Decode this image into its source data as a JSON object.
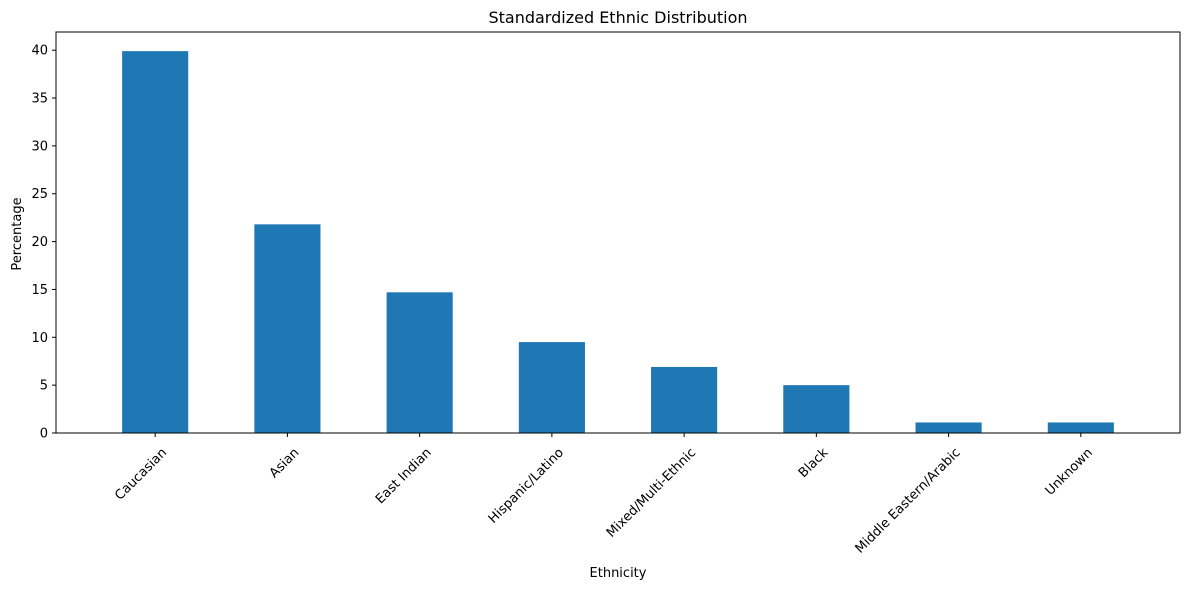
{
  "chart_data": {
    "type": "bar",
    "title": "Standardized Ethnic Distribution",
    "xlabel": "Ethnicity",
    "ylabel": "Percentage",
    "categories": [
      "Caucasian",
      "Asian",
      "East Indian",
      "Hispanic/Latino",
      "Mixed/Multi-Ethnic",
      "Black",
      "Middle Eastern/Arabic",
      "Unknown"
    ],
    "values": [
      39.9,
      21.8,
      14.7,
      9.5,
      6.9,
      5.0,
      1.1,
      1.1
    ],
    "ylim": [
      0,
      41.9
    ],
    "yticks": [
      0,
      5,
      10,
      15,
      20,
      25,
      30,
      35,
      40
    ],
    "bar_color": "#1f77b4",
    "grid": false,
    "legend": "none"
  }
}
